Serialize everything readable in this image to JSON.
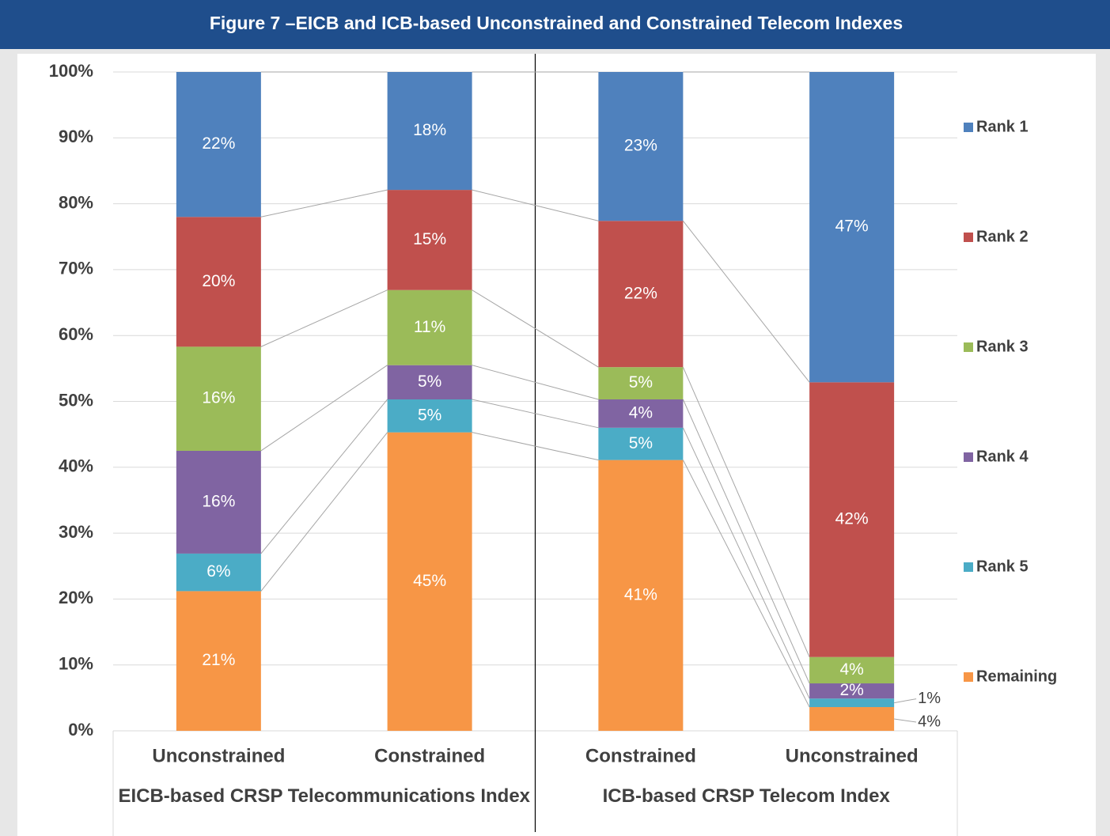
{
  "chart_data": {
    "type": "stacked-bar",
    "title": "Figure 7 –EICB and ICB-based Unconstrained and Constrained Telecom Indexes",
    "categories": [
      "Unconstrained",
      "Constrained",
      "Constrained",
      "Unconstrained"
    ],
    "groups": [
      {
        "label": "EICB-based CRSP Telecommunications Index",
        "categories": [
          0,
          1
        ]
      },
      {
        "label": "ICB-based CRSP Telecom Index",
        "categories": [
          2,
          3
        ]
      }
    ],
    "series": [
      {
        "name": "Remaining",
        "color": "#f79646",
        "values": [
          21.2,
          45.3,
          41.1,
          3.6
        ],
        "value_labels": [
          "21%",
          "45%",
          "41%",
          "4%"
        ]
      },
      {
        "name": "Rank 5",
        "color": "#4bacc6",
        "values": [
          5.7,
          5.0,
          4.9,
          1.3
        ],
        "value_labels": [
          "6%",
          "5%",
          "5%",
          "1%"
        ]
      },
      {
        "name": "Rank 4",
        "color": "#8064a2",
        "values": [
          15.6,
          5.2,
          4.3,
          2.3
        ],
        "value_labels": [
          "16%",
          "5%",
          "4%",
          "2%"
        ]
      },
      {
        "name": "Rank 3",
        "color": "#9bbb59",
        "values": [
          15.8,
          11.4,
          4.9,
          4.0
        ],
        "value_labels": [
          "16%",
          "11%",
          "5%",
          "4%"
        ]
      },
      {
        "name": "Rank 2",
        "color": "#c0504d",
        "values": [
          19.7,
          15.2,
          22.2,
          41.7
        ],
        "value_labels": [
          "20%",
          "15%",
          "22%",
          "42%"
        ]
      },
      {
        "name": "Rank 1",
        "color": "#4f81bd",
        "values": [
          22.0,
          17.9,
          22.6,
          47.1
        ],
        "value_labels": [
          "22%",
          "18%",
          "23%",
          "47%"
        ]
      }
    ],
    "ylim": [
      0,
      100
    ],
    "yticks": [
      {
        "value": 0,
        "label": "0%"
      },
      {
        "value": 10,
        "label": "10%"
      },
      {
        "value": 20,
        "label": "20%"
      },
      {
        "value": 30,
        "label": "30%"
      },
      {
        "value": 40,
        "label": "40%"
      },
      {
        "value": 50,
        "label": "50%"
      },
      {
        "value": 60,
        "label": "60%"
      },
      {
        "value": 70,
        "label": "70%"
      },
      {
        "value": 80,
        "label": "80%"
      },
      {
        "value": 90,
        "label": "90%"
      },
      {
        "value": 100,
        "label": "100%"
      }
    ],
    "grid": true,
    "legend": "right"
  }
}
